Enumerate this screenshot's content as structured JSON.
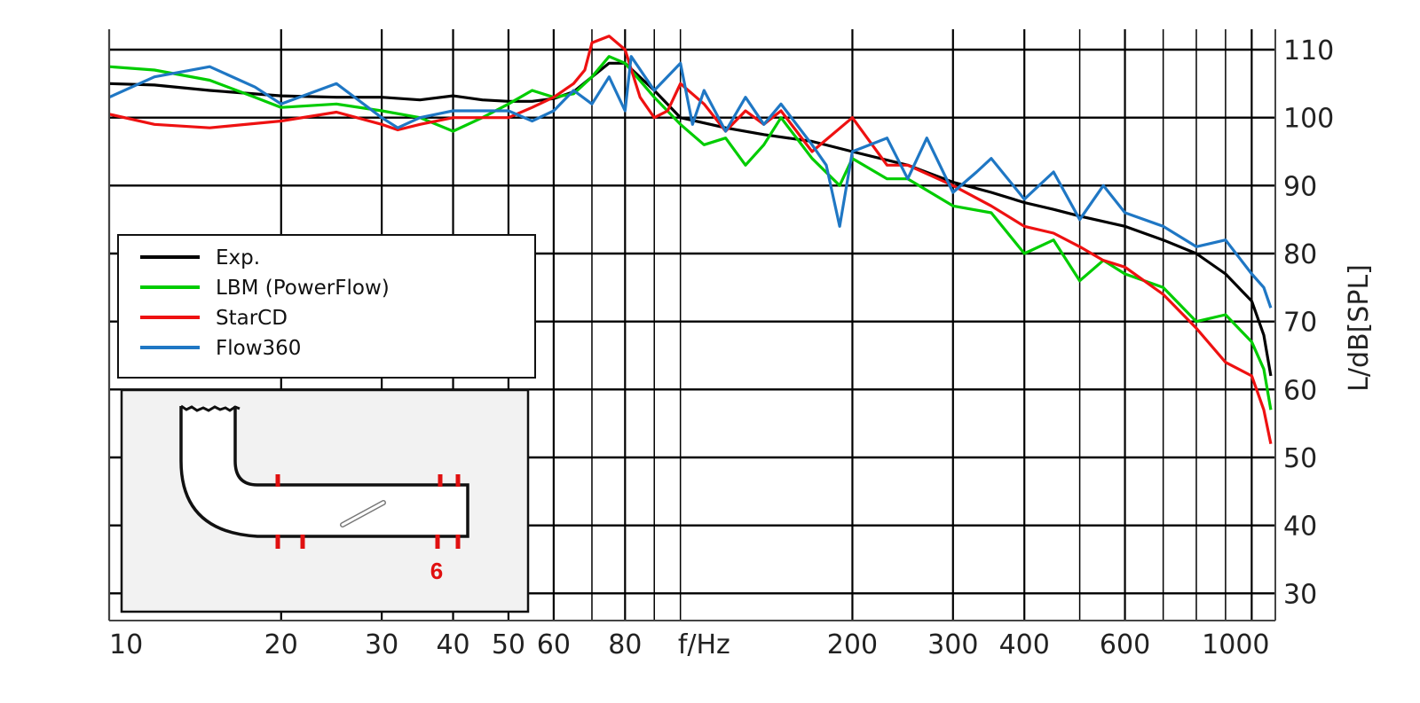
{
  "chart_data": {
    "type": "line",
    "xscale": "log",
    "xlim": [
      10,
      1100
    ],
    "ylim": [
      26,
      113
    ],
    "grid": true,
    "x_ticks": [
      10,
      20,
      30,
      40,
      50,
      60,
      80,
      200,
      300,
      400,
      600,
      1000
    ],
    "x_tick_labels": [
      "10",
      "20",
      "30",
      "40",
      "50",
      "60",
      "80",
      "200",
      "300",
      "400",
      "600",
      "1000"
    ],
    "x_minor_grid": [
      70,
      90,
      100,
      500,
      700,
      800,
      900
    ],
    "xlabel": "f/Hz",
    "y_ticks": [
      30,
      40,
      50,
      60,
      70,
      80,
      90,
      100,
      110
    ],
    "ylabel": "L/dB[SPL]",
    "legend_position": "left",
    "series": [
      {
        "name": "Exp.",
        "color": "#000000",
        "points": [
          [
            10,
            105
          ],
          [
            12,
            104.8
          ],
          [
            15,
            104
          ],
          [
            20,
            103.2
          ],
          [
            25,
            103
          ],
          [
            30,
            103
          ],
          [
            35,
            102.6
          ],
          [
            40,
            103.2
          ],
          [
            45,
            102.6
          ],
          [
            50,
            102.4
          ],
          [
            55,
            102.4
          ],
          [
            60,
            102.8
          ],
          [
            65,
            103.8
          ],
          [
            70,
            106
          ],
          [
            75,
            108
          ],
          [
            80,
            108
          ],
          [
            90,
            104
          ],
          [
            100,
            100
          ],
          [
            120,
            98.5
          ],
          [
            140,
            97.5
          ],
          [
            170,
            96.5
          ],
          [
            200,
            95
          ],
          [
            250,
            93
          ],
          [
            300,
            90.5
          ],
          [
            350,
            89
          ],
          [
            400,
            87.5
          ],
          [
            450,
            86.5
          ],
          [
            500,
            85.5
          ],
          [
            600,
            84
          ],
          [
            700,
            82
          ],
          [
            800,
            80
          ],
          [
            900,
            77
          ],
          [
            1000,
            73
          ],
          [
            1050,
            68
          ],
          [
            1080,
            62
          ]
        ]
      },
      {
        "name": "LBM (PowerFlow)",
        "color": "#00cc00",
        "points": [
          [
            10,
            107.5
          ],
          [
            12,
            107
          ],
          [
            15,
            105.5
          ],
          [
            18,
            103
          ],
          [
            20,
            101.5
          ],
          [
            25,
            102
          ],
          [
            30,
            101
          ],
          [
            35,
            100
          ],
          [
            40,
            98
          ],
          [
            45,
            100
          ],
          [
            50,
            102
          ],
          [
            55,
            104
          ],
          [
            60,
            103
          ],
          [
            65,
            103.5
          ],
          [
            70,
            106
          ],
          [
            75,
            109
          ],
          [
            80,
            108
          ],
          [
            90,
            103
          ],
          [
            100,
            99
          ],
          [
            110,
            96
          ],
          [
            120,
            97
          ],
          [
            130,
            93
          ],
          [
            140,
            96
          ],
          [
            150,
            100
          ],
          [
            170,
            94
          ],
          [
            190,
            90
          ],
          [
            200,
            94
          ],
          [
            230,
            91
          ],
          [
            250,
            91
          ],
          [
            300,
            87
          ],
          [
            350,
            86
          ],
          [
            400,
            80
          ],
          [
            450,
            82
          ],
          [
            500,
            76
          ],
          [
            550,
            79
          ],
          [
            600,
            77
          ],
          [
            700,
            75
          ],
          [
            800,
            70
          ],
          [
            900,
            71
          ],
          [
            1000,
            67
          ],
          [
            1050,
            63
          ],
          [
            1080,
            57
          ]
        ]
      },
      {
        "name": "StarCD",
        "color": "#ee1111",
        "points": [
          [
            10,
            100.5
          ],
          [
            12,
            99
          ],
          [
            15,
            98.5
          ],
          [
            20,
            99.5
          ],
          [
            25,
            100.8
          ],
          [
            30,
            99
          ],
          [
            32,
            98.2
          ],
          [
            35,
            99
          ],
          [
            40,
            100
          ],
          [
            50,
            100
          ],
          [
            55,
            101.5
          ],
          [
            60,
            103
          ],
          [
            65,
            105
          ],
          [
            68,
            107
          ],
          [
            70,
            111
          ],
          [
            75,
            112
          ],
          [
            80,
            110
          ],
          [
            85,
            103
          ],
          [
            90,
            100
          ],
          [
            95,
            101
          ],
          [
            100,
            105
          ],
          [
            110,
            102
          ],
          [
            120,
            98
          ],
          [
            130,
            101
          ],
          [
            140,
            99
          ],
          [
            150,
            101
          ],
          [
            170,
            95
          ],
          [
            200,
            100
          ],
          [
            230,
            93
          ],
          [
            250,
            93
          ],
          [
            300,
            90
          ],
          [
            350,
            87
          ],
          [
            400,
            84
          ],
          [
            450,
            83
          ],
          [
            500,
            81
          ],
          [
            550,
            79
          ],
          [
            600,
            78
          ],
          [
            700,
            74
          ],
          [
            800,
            69
          ],
          [
            900,
            64
          ],
          [
            1000,
            62
          ],
          [
            1050,
            57
          ],
          [
            1080,
            52
          ]
        ]
      },
      {
        "name": "Flow360",
        "color": "#1f77c4",
        "points": [
          [
            10,
            103
          ],
          [
            12,
            106
          ],
          [
            15,
            107.5
          ],
          [
            18,
            104.5
          ],
          [
            20,
            102
          ],
          [
            25,
            105
          ],
          [
            30,
            100
          ],
          [
            32,
            98.5
          ],
          [
            35,
            100
          ],
          [
            40,
            101
          ],
          [
            50,
            101
          ],
          [
            55,
            99.5
          ],
          [
            60,
            101
          ],
          [
            65,
            104
          ],
          [
            70,
            102
          ],
          [
            75,
            106
          ],
          [
            80,
            101
          ],
          [
            82,
            109
          ],
          [
            90,
            104
          ],
          [
            100,
            108
          ],
          [
            105,
            99
          ],
          [
            110,
            104
          ],
          [
            120,
            98
          ],
          [
            130,
            103
          ],
          [
            140,
            99
          ],
          [
            150,
            102
          ],
          [
            170,
            96
          ],
          [
            180,
            93
          ],
          [
            190,
            84
          ],
          [
            200,
            95
          ],
          [
            230,
            97
          ],
          [
            250,
            91
          ],
          [
            270,
            97
          ],
          [
            300,
            89
          ],
          [
            330,
            92
          ],
          [
            350,
            94
          ],
          [
            400,
            88
          ],
          [
            450,
            92
          ],
          [
            500,
            85
          ],
          [
            550,
            90
          ],
          [
            600,
            86
          ],
          [
            700,
            84
          ],
          [
            800,
            81
          ],
          [
            900,
            82
          ],
          [
            1000,
            77
          ],
          [
            1050,
            75
          ],
          [
            1080,
            72
          ]
        ]
      }
    ]
  },
  "inset": {
    "marker_label": "6"
  }
}
